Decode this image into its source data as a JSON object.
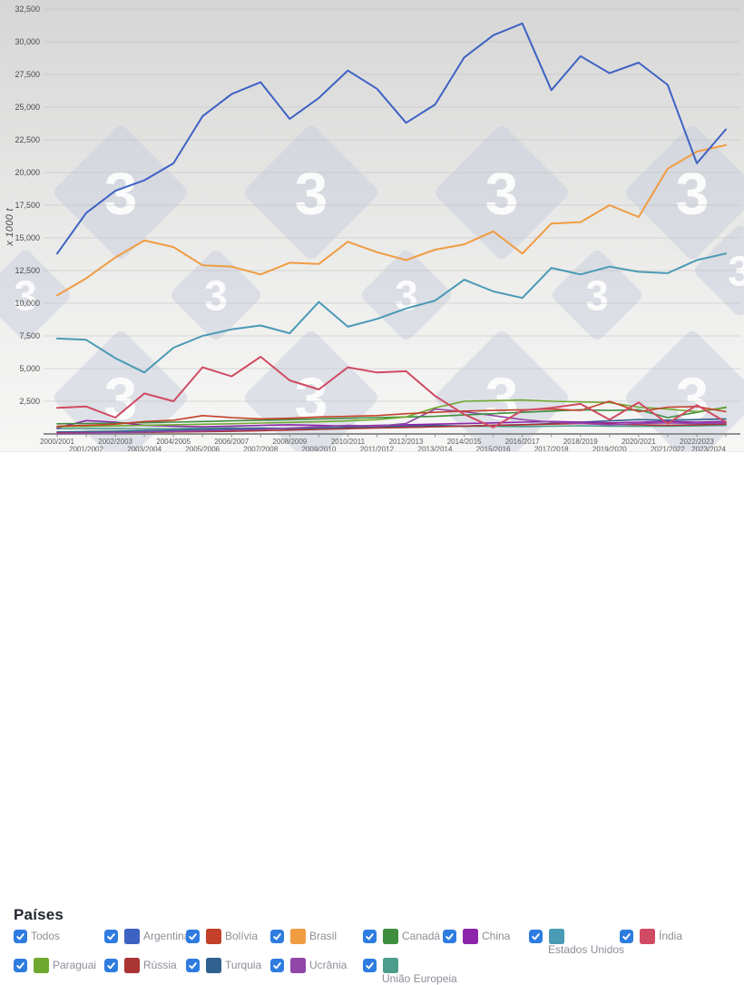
{
  "chart_data": {
    "type": "line",
    "title": "",
    "xlabel": "",
    "ylabel": "x 1000 t",
    "ylim": [
      0,
      32500
    ],
    "ytick_step": 2500,
    "grid": true,
    "legend_position": "bottom",
    "categories": [
      "2000/2001",
      "2001/2002",
      "2002/2003",
      "2003/2004",
      "2004/2005",
      "2005/2006",
      "2006/2007",
      "2007/2008",
      "2008/2009",
      "2009/2010",
      "2010/2011",
      "2011/2012",
      "2012/2013",
      "2013/2014",
      "2014/2015",
      "2015/2016",
      "2016/2017",
      "2017/2018",
      "2018/2019",
      "2019/2020",
      "2020/2021",
      "2021/2022",
      "2022/2023",
      "2023/2024"
    ],
    "series": [
      {
        "name": "União Europeia",
        "color": "#4d9d8d",
        "width": 1.6,
        "values": [
          400,
          420,
          400,
          380,
          420,
          440,
          460,
          440,
          420,
          460,
          500,
          480,
          500,
          550,
          600,
          580,
          560,
          600,
          620,
          600,
          580,
          600,
          620,
          650
        ]
      },
      {
        "name": "Turquia",
        "color": "#31618f",
        "width": 1.6,
        "values": [
          150,
          180,
          200,
          250,
          300,
          350,
          400,
          450,
          400,
          450,
          500,
          550,
          600,
          650,
          600,
          650,
          700,
          800,
          900,
          1000,
          1100,
          1050,
          1100,
          1150
        ]
      },
      {
        "name": "Rússia",
        "color": "#ab3434",
        "width": 1.6,
        "values": [
          80,
          90,
          100,
          120,
          150,
          180,
          200,
          250,
          300,
          350,
          400,
          450,
          500,
          550,
          600,
          650,
          700,
          750,
          800,
          750,
          700,
          650,
          700,
          750
        ]
      },
      {
        "name": "China",
        "color": "#8e24aa",
        "width": 1.6,
        "values": [
          450,
          1020,
          900,
          660,
          600,
          550,
          600,
          650,
          700,
          650,
          600,
          650,
          700,
          750,
          800,
          850,
          900,
          950,
          900,
          850,
          900,
          950,
          900,
          950
        ]
      },
      {
        "name": "Ucrânia",
        "color": "#9146a8",
        "width": 1.6,
        "values": [
          30,
          60,
          100,
          150,
          200,
          250,
          300,
          350,
          450,
          550,
          650,
          600,
          800,
          1900,
          1700,
          1400,
          1100,
          900,
          800,
          700,
          800,
          850,
          800,
          850
        ]
      },
      {
        "name": "Canadá",
        "color": "#3e8e3e",
        "width": 1.6,
        "values": [
          780,
          800,
          830,
          860,
          900,
          950,
          1000,
          1050,
          1100,
          1150,
          1200,
          1250,
          1300,
          1350,
          1450,
          1550,
          1650,
          1750,
          1850,
          1800,
          1850,
          1250,
          1650,
          2050
        ]
      },
      {
        "name": "Paraguai",
        "color": "#6fa82f",
        "width": 1.6,
        "values": [
          550,
          580,
          620,
          660,
          700,
          740,
          780,
          830,
          880,
          930,
          1000,
          1100,
          1300,
          2000,
          2500,
          2550,
          2600,
          2500,
          2450,
          2400,
          2050,
          1900,
          1700,
          2000
        ]
      },
      {
        "name": "Bolívia",
        "color": "#c4402a",
        "width": 1.6,
        "values": [
          600,
          650,
          750,
          950,
          1050,
          1400,
          1250,
          1150,
          1200,
          1300,
          1350,
          1400,
          1550,
          1650,
          1750,
          1800,
          1850,
          1900,
          1800,
          2500,
          1700,
          2050,
          2100,
          1700
        ]
      },
      {
        "name": "Índia",
        "color": "#d04a63",
        "width": 2,
        "values": [
          2000,
          2100,
          1250,
          3100,
          2500,
          5100,
          4400,
          5900,
          4100,
          3400,
          5100,
          4700,
          4800,
          2900,
          1500,
          500,
          1800,
          2000,
          2300,
          1100,
          2400,
          800,
          2200,
          900
        ]
      },
      {
        "name": "Estados Unidos",
        "color": "#4a9ab5",
        "width": 2,
        "values": [
          7300,
          7200,
          5800,
          4700,
          6600,
          7500,
          8000,
          8300,
          7700,
          10100,
          8200,
          8800,
          9600,
          10200,
          11800,
          10900,
          10400,
          12700,
          12200,
          12800,
          12400,
          12300,
          13300,
          13800
        ]
      },
      {
        "name": "Brasil",
        "color": "#f09c42",
        "width": 2,
        "values": [
          10600,
          11900,
          13500,
          14800,
          14300,
          12900,
          12800,
          12200,
          13100,
          13000,
          14700,
          13900,
          13300,
          14100,
          14500,
          15500,
          13800,
          16100,
          16200,
          17500,
          16600,
          20300,
          21600,
          22100
        ]
      },
      {
        "name": "Argentina",
        "color": "#3e62c4",
        "width": 2,
        "values": [
          13800,
          16900,
          18600,
          19400,
          20700,
          24300,
          26000,
          26900,
          24100,
          25700,
          27800,
          26400,
          23800,
          25200,
          28800,
          30500,
          31400,
          26300,
          28900,
          27600,
          28400,
          26700,
          20700,
          23300
        ]
      }
    ]
  },
  "legend": {
    "title": "Países",
    "checkbox_color": "#2e7ce0",
    "items": [
      {
        "label": "Todos",
        "checked": true,
        "color": null
      },
      {
        "label": "Argentina",
        "checked": true,
        "color": "#3e62c4"
      },
      {
        "label": "Bolívia",
        "checked": true,
        "color": "#c4402a"
      },
      {
        "label": "Brasil",
        "checked": true,
        "color": "#f09c42"
      },
      {
        "label": "Canadá",
        "checked": true,
        "color": "#3e8e3e"
      },
      {
        "label": "China",
        "checked": true,
        "color": "#8e24aa"
      },
      {
        "label": "Estados Unidos",
        "checked": true,
        "color": "#4a9ab5"
      },
      {
        "label": "Índia",
        "checked": true,
        "color": "#d04a63"
      },
      {
        "label": "Paraguai",
        "checked": true,
        "color": "#6fa82f"
      },
      {
        "label": "Rússia",
        "checked": true,
        "color": "#ab3434"
      },
      {
        "label": "Turquia",
        "checked": true,
        "color": "#31618f"
      },
      {
        "label": "Ucrânia",
        "checked": true,
        "color": "#9146a8"
      },
      {
        "label": "União Europeia",
        "checked": true,
        "color": "#4d9d8d"
      }
    ]
  },
  "watermark": {
    "glyph": "3",
    "diamond_color": "#c8cedb",
    "glyph_color": "#ffffff"
  },
  "axis": {
    "tick_label_color": "#4a4a4a",
    "x_label_color": "#5c5c5c",
    "axis_line_color": "#8f8f8f",
    "grid_color": "#bdbdbd"
  }
}
